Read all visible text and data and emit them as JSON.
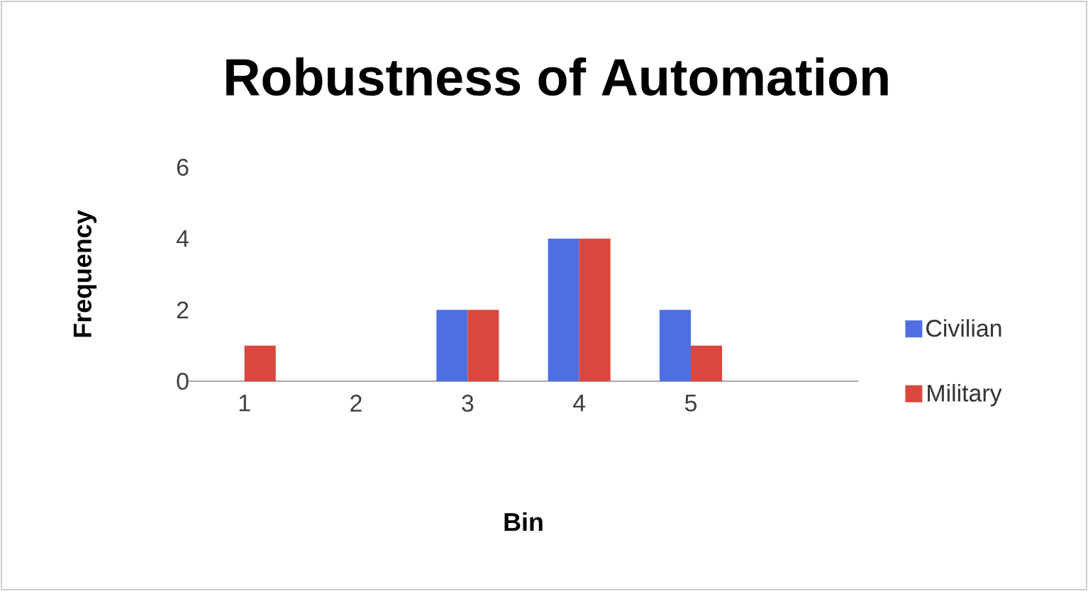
{
  "chart_data": {
    "type": "bar",
    "title": "Robustness of Automation",
    "xlabel": "Bin",
    "ylabel": "Frequency",
    "categories": [
      "1",
      "2",
      "3",
      "4",
      "5",
      null
    ],
    "series": [
      {
        "name": "Civilian",
        "color": "#4d6fe3",
        "values": [
          0,
          0,
          2,
          4,
          2,
          0
        ]
      },
      {
        "name": "Military",
        "color": "#d9473d",
        "values": [
          1,
          0,
          2,
          4,
          1,
          0
        ]
      }
    ],
    "ylim": [
      0,
      6
    ],
    "yticks": [
      0,
      2,
      4,
      6
    ],
    "legend": "right"
  }
}
